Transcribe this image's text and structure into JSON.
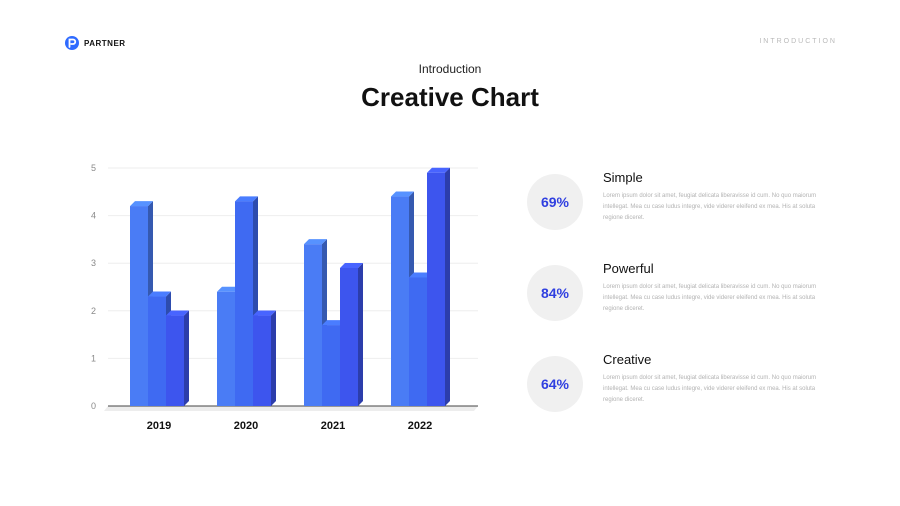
{
  "brand": {
    "name": "PARTNER",
    "icon": "p-logo-icon",
    "accent": "#2f6bff"
  },
  "section_tag": "INTRODUCTION",
  "header": {
    "kicker": "Introduction",
    "title": "Creative Chart"
  },
  "chart_data": {
    "type": "bar",
    "style": "3d-clustered",
    "categories": [
      "2019",
      "2020",
      "2021",
      "2022"
    ],
    "series": [
      {
        "values": [
          4.2,
          2.4,
          3.4,
          4.4
        ],
        "color": "#4a7cf5"
      },
      {
        "values": [
          2.3,
          4.3,
          1.7,
          2.7
        ],
        "color": "#3f6af2"
      },
      {
        "values": [
          1.9,
          1.9,
          2.9,
          4.9
        ],
        "color": "#3d55ee"
      }
    ],
    "ylim": [
      0,
      5
    ],
    "yticks": [
      "0",
      "1",
      "2",
      "3",
      "4",
      "5"
    ],
    "grid": true,
    "legend": "none"
  },
  "features": [
    {
      "percent": "69%",
      "title": "Simple",
      "desc": "Lorem ipsum dolor sit amet, feugiat delicata liberavisse id cum. No quo maiorum intellegat. Mea cu case ludus integre, vide viderer eleifend ex mea. His at soluta regione diceret."
    },
    {
      "percent": "84%",
      "title": "Powerful",
      "desc": "Lorem ipsum dolor sit amet, feugiat delicata liberavisse id cum. No quo maiorum intellegat. Mea cu case ludus integre, vide viderer eleifend ex mea. His at soluta regione diceret."
    },
    {
      "percent": "64%",
      "title": "Creative",
      "desc": "Lorem ipsum dolor sit amet, feugiat delicata liberavisse id cum. No quo maiorum intellegat. Mea cu case ludus integre, vide viderer eleifend ex mea. His at soluta regione diceret."
    }
  ]
}
